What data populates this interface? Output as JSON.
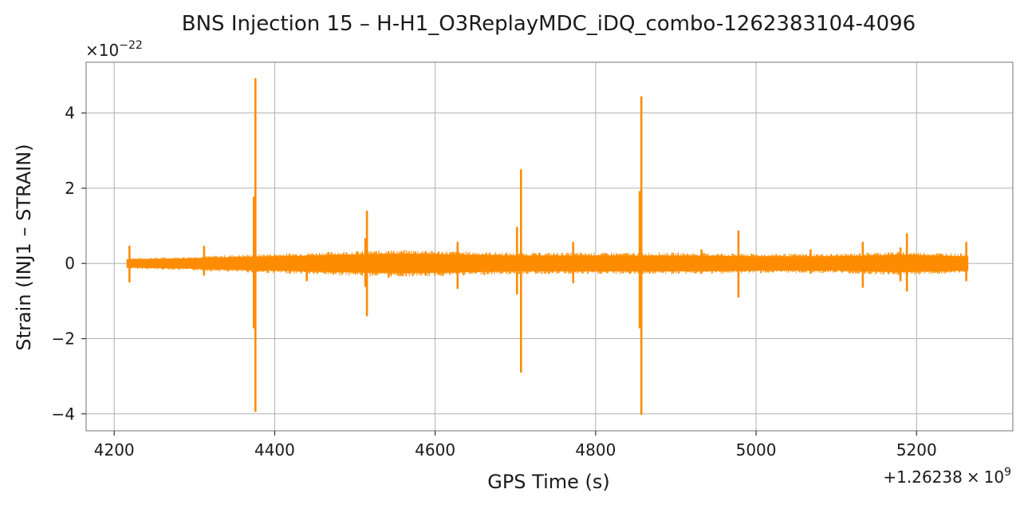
{
  "chart_data": {
    "type": "line",
    "title": "BNS Injection 15 – H-H1_O3ReplayMDC_iDQ_combo-1262383104-4096",
    "xlabel": "GPS Time (s)",
    "ylabel": "Strain (INJ1 – STRAIN)",
    "x_offset_label": {
      "prefix": "+1.26238",
      "times": "×",
      "base": "10",
      "exp": "9"
    },
    "y_scale_label": {
      "times": "×",
      "base": "10",
      "exp": "−22"
    },
    "xlim": [
      4165,
      5320
    ],
    "ylim": [
      -4.45,
      5.35
    ],
    "x_ticks": [
      4200,
      4400,
      4600,
      4800,
      5000,
      5200
    ],
    "x_tick_labels": [
      "4200",
      "4400",
      "4600",
      "4800",
      "5000",
      "5200"
    ],
    "y_ticks": [
      -4,
      -2,
      0,
      2,
      4
    ],
    "y_tick_labels": [
      "−4",
      "−2",
      "0",
      "2",
      "4"
    ],
    "grid": true,
    "series": [
      {
        "color": "#ff8c00",
        "x_range": [
          4216,
          5264
        ],
        "baseline": [
          {
            "x": 4216,
            "lo": -0.1,
            "hi": 0.1
          },
          {
            "x": 4280,
            "lo": -0.12,
            "hi": 0.12
          },
          {
            "x": 4350,
            "lo": -0.16,
            "hi": 0.16
          },
          {
            "x": 4420,
            "lo": -0.19,
            "hi": 0.19
          },
          {
            "x": 4480,
            "lo": -0.22,
            "hi": 0.22
          },
          {
            "x": 4560,
            "lo": -0.25,
            "hi": 0.25
          },
          {
            "x": 4640,
            "lo": -0.22,
            "hi": 0.22
          },
          {
            "x": 4700,
            "lo": -0.2,
            "hi": 0.2
          },
          {
            "x": 4800,
            "lo": -0.2,
            "hi": 0.2
          },
          {
            "x": 4900,
            "lo": -0.2,
            "hi": 0.2
          },
          {
            "x": 5000,
            "lo": -0.18,
            "hi": 0.18
          },
          {
            "x": 5100,
            "lo": -0.18,
            "hi": 0.18
          },
          {
            "x": 5180,
            "lo": -0.22,
            "hi": 0.22
          },
          {
            "x": 5264,
            "lo": -0.18,
            "hi": 0.18
          }
        ],
        "spikes": [
          {
            "x": 4219,
            "max": 0.45,
            "min": -0.48
          },
          {
            "x": 4312,
            "max": 0.45,
            "min": -0.3
          },
          {
            "x": 4374,
            "max": 1.75,
            "min": -1.7
          },
          {
            "x": 4376,
            "max": 4.9,
            "min": -3.92
          },
          {
            "x": 4440,
            "max": 0.2,
            "min": -0.45
          },
          {
            "x": 4513,
            "max": 0.65,
            "min": -0.6
          },
          {
            "x": 4515,
            "max": 1.38,
            "min": -1.38
          },
          {
            "x": 4542,
            "max": 0.3,
            "min": -0.35
          },
          {
            "x": 4588,
            "max": 0.3,
            "min": -0.3
          },
          {
            "x": 4628,
            "max": 0.55,
            "min": -0.65
          },
          {
            "x": 4702,
            "max": 0.95,
            "min": -0.8
          },
          {
            "x": 4707,
            "max": 2.48,
            "min": -2.88
          },
          {
            "x": 4772,
            "max": 0.55,
            "min": -0.5
          },
          {
            "x": 4855,
            "max": 1.9,
            "min": -1.7
          },
          {
            "x": 4857,
            "max": 4.42,
            "min": -4.0
          },
          {
            "x": 4932,
            "max": 0.35,
            "min": -0.25
          },
          {
            "x": 4978,
            "max": 0.85,
            "min": -0.88
          },
          {
            "x": 5068,
            "max": 0.35,
            "min": -0.25
          },
          {
            "x": 5133,
            "max": 0.55,
            "min": -0.62
          },
          {
            "x": 5180,
            "max": 0.4,
            "min": -0.45
          },
          {
            "x": 5188,
            "max": 0.78,
            "min": -0.72
          },
          {
            "x": 5262,
            "max": 0.55,
            "min": -0.45
          }
        ]
      }
    ]
  }
}
